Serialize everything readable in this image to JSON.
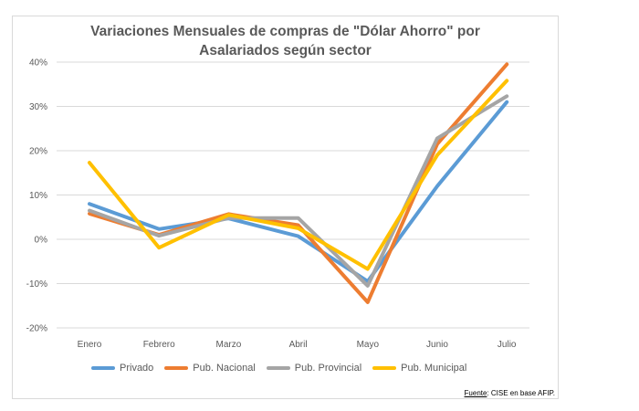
{
  "chart_data": {
    "type": "line",
    "title": "Variaciones Mensuales de compras de \"Dólar Ahorro\" por Asalariados según sector",
    "title_lines": [
      "Variaciones Mensuales de compras de \"Dólar Ahorro\" por",
      "Asalariados según sector"
    ],
    "xlabel": "",
    "ylabel": "",
    "categories": [
      "Enero",
      "Febrero",
      "Marzo",
      "Abril",
      "Mayo",
      "Junio",
      "Julio"
    ],
    "ylim": [
      -20,
      40
    ],
    "y_ticks": [
      {
        "value": 40,
        "label": "40%"
      },
      {
        "value": 30,
        "label": "30%"
      },
      {
        "value": 20,
        "label": "20%"
      },
      {
        "value": 10,
        "label": "10%"
      },
      {
        "value": 0,
        "label": "0%"
      },
      {
        "value": -10,
        "label": "-10%"
      },
      {
        "value": -20,
        "label": "-20%"
      }
    ],
    "grid": true,
    "legend_position": "bottom",
    "series": [
      {
        "name": "Privado",
        "color": "#5b9bd5",
        "values": [
          8.0,
          2.3,
          4.7,
          0.7,
          -9.5,
          12.0,
          31.0
        ]
      },
      {
        "name": "Pub. Nacional",
        "color": "#ed7d31",
        "values": [
          5.8,
          1.0,
          5.7,
          3.2,
          -14.2,
          21.5,
          39.5
        ]
      },
      {
        "name": "Pub. Provincial",
        "color": "#a5a5a5",
        "values": [
          6.5,
          0.8,
          4.8,
          4.8,
          -10.5,
          22.8,
          32.3
        ]
      },
      {
        "name": "Pub. Municipal",
        "color": "#ffc000",
        "values": [
          17.3,
          -1.9,
          5.5,
          2.5,
          -6.7,
          19.0,
          35.8
        ]
      }
    ]
  },
  "source": {
    "label": "Fuente",
    "text": ": CISE en base AFIP."
  }
}
